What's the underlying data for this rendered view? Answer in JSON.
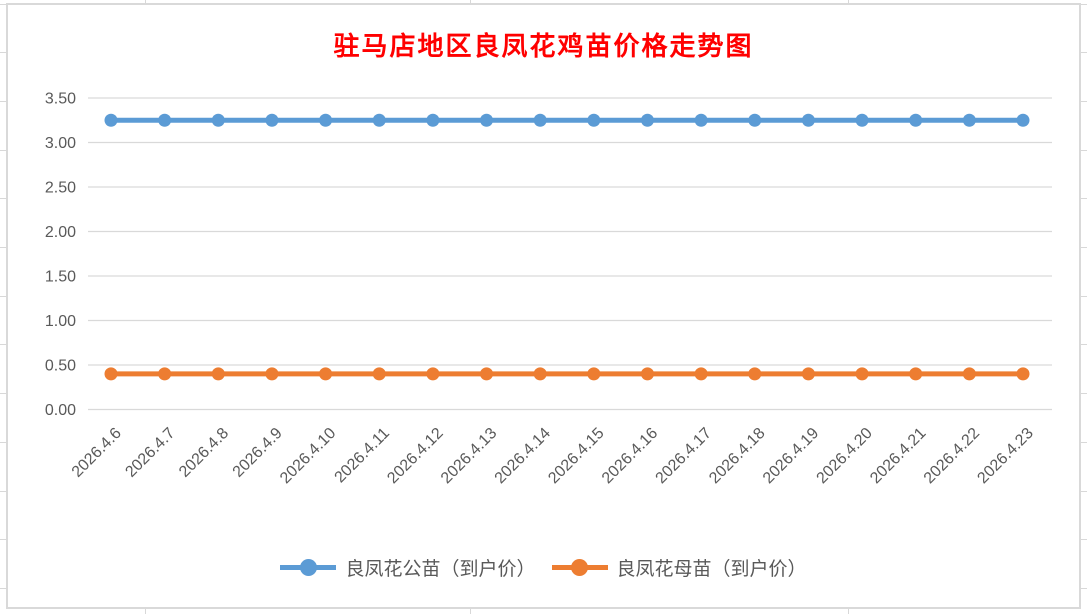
{
  "chart_data": {
    "type": "line",
    "title": "驻马店地区良凤花鸡苗价格走势图",
    "categories": [
      "2026.4.6",
      "2026.4.7",
      "2026.4.8",
      "2026.4.9",
      "2026.4.10",
      "2026.4.11",
      "2026.4.12",
      "2026.4.13",
      "2026.4.14",
      "2026.4.15",
      "2026.4.16",
      "2026.4.17",
      "2026.4.18",
      "2026.4.19",
      "2026.4.20",
      "2026.4.21",
      "2026.4.22",
      "2026.4.23"
    ],
    "series": [
      {
        "name": "良凤花公苗（到户价）",
        "color": "#5B9BD5",
        "values": [
          3.25,
          3.25,
          3.25,
          3.25,
          3.25,
          3.25,
          3.25,
          3.25,
          3.25,
          3.25,
          3.25,
          3.25,
          3.25,
          3.25,
          3.25,
          3.25,
          3.25,
          3.25
        ]
      },
      {
        "name": "良凤花母苗（到户价）",
        "color": "#ED7D31",
        "values": [
          0.4,
          0.4,
          0.4,
          0.4,
          0.4,
          0.4,
          0.4,
          0.4,
          0.4,
          0.4,
          0.4,
          0.4,
          0.4,
          0.4,
          0.4,
          0.4,
          0.4,
          0.4
        ]
      }
    ],
    "xlabel": "",
    "ylabel": "",
    "ylim": [
      0,
      3.5
    ],
    "y_ticks": [
      0,
      0.5,
      1,
      1.5,
      2,
      2.5,
      3,
      3.5
    ],
    "y_tick_labels": [
      "0.00",
      "0.50",
      "1.00",
      "1.50",
      "2.00",
      "2.50",
      "3.00",
      "3.50"
    ],
    "grid": true,
    "legend_position": "bottom",
    "marker": "circle",
    "x_label_rotation_deg": 45
  },
  "colors": {
    "title": "#FF0000",
    "grid_line": "#D9D9D9",
    "axis_label": "#595959",
    "legend_text": "#595959",
    "chart_border": "#D9D9D9",
    "background": "#FFFFFF"
  }
}
